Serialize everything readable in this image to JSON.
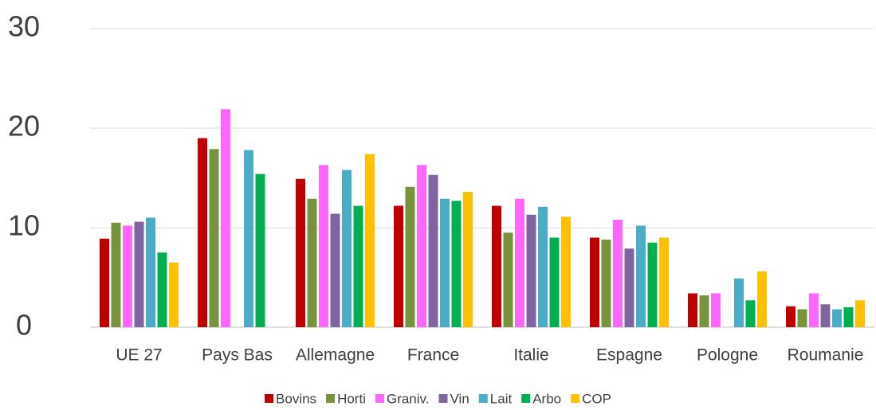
{
  "chart_data": {
    "type": "bar",
    "categories": [
      "UE 27",
      "Pays Bas",
      "Allemagne",
      "France",
      "Italie",
      "Espagne",
      "Pologne",
      "Roumanie"
    ],
    "series": [
      {
        "name": "Bovins",
        "color": "#c00000",
        "values": [
          8.9,
          19.0,
          14.9,
          12.2,
          12.2,
          9.0,
          3.4,
          2.1
        ]
      },
      {
        "name": "Horti",
        "color": "#77933c",
        "values": [
          10.5,
          17.9,
          12.9,
          14.1,
          9.5,
          8.8,
          3.2,
          1.8
        ]
      },
      {
        "name": "Graniv.",
        "color": "#ff66ff",
        "values": [
          10.2,
          21.9,
          16.3,
          16.3,
          12.9,
          10.8,
          3.4,
          3.4
        ]
      },
      {
        "name": "Vin",
        "color": "#8064a2",
        "values": [
          10.6,
          null,
          11.4,
          15.3,
          11.3,
          7.9,
          null,
          2.3
        ]
      },
      {
        "name": "Lait",
        "color": "#4bacc6",
        "values": [
          11.0,
          17.8,
          15.8,
          12.9,
          12.1,
          10.2,
          4.9,
          1.8
        ]
      },
      {
        "name": "Arbo",
        "color": "#00b050",
        "values": [
          7.5,
          15.4,
          12.2,
          12.7,
          9.0,
          8.5,
          2.7,
          2.0
        ]
      },
      {
        "name": "COP",
        "color": "#ffc000",
        "values": [
          6.5,
          null,
          17.4,
          13.6,
          11.1,
          9.0,
          5.6,
          2.7
        ]
      }
    ],
    "ylim": [
      0,
      30
    ],
    "yticks": [
      0,
      10,
      20,
      30
    ],
    "grid": true,
    "legend": "bottom"
  }
}
